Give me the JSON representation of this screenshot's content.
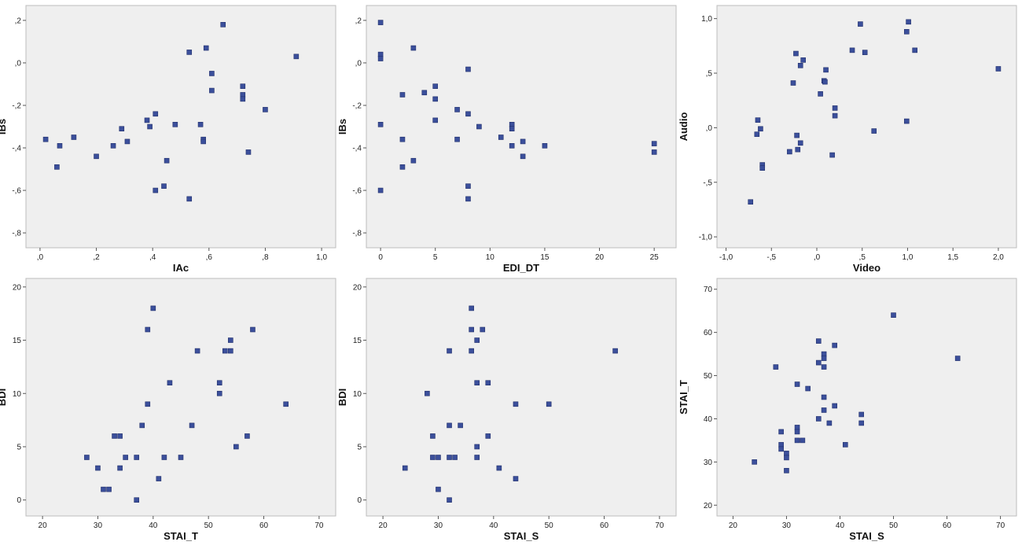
{
  "style": {
    "plot_bg": "#efefef",
    "frame": "#bdbdbd",
    "marker_fill": "#3b4f9b",
    "marker_stroke": "#22306b"
  },
  "chart_data": [
    {
      "type": "scatter",
      "xlabel": "IAc",
      "ylabel": "IBs",
      "xlim": [
        -0.05,
        1.05
      ],
      "ylim": [
        -0.87,
        0.27
      ],
      "xticks": [
        0,
        0.2,
        0.4,
        0.6,
        0.8,
        1.0
      ],
      "xtick_labels": [
        ",0",
        ",2",
        ",4",
        ",6",
        ",8",
        "1,0"
      ],
      "yticks": [
        0.2,
        0,
        -0.2,
        -0.4,
        -0.6,
        -0.8
      ],
      "ytick_labels": [
        ",2",
        ",0",
        "-,2",
        "-,4",
        "-,6",
        "-,8"
      ],
      "points": [
        [
          0.02,
          -0.36
        ],
        [
          0.06,
          -0.49
        ],
        [
          0.07,
          -0.39
        ],
        [
          0.12,
          -0.35
        ],
        [
          0.2,
          -0.44
        ],
        [
          0.26,
          -0.39
        ],
        [
          0.29,
          -0.31
        ],
        [
          0.31,
          -0.37
        ],
        [
          0.38,
          -0.27
        ],
        [
          0.39,
          -0.3
        ],
        [
          0.41,
          -0.24
        ],
        [
          0.41,
          -0.6
        ],
        [
          0.44,
          -0.58
        ],
        [
          0.45,
          -0.46
        ],
        [
          0.48,
          -0.29
        ],
        [
          0.53,
          0.05
        ],
        [
          0.53,
          -0.64
        ],
        [
          0.57,
          -0.29
        ],
        [
          0.58,
          -0.36
        ],
        [
          0.58,
          -0.37
        ],
        [
          0.59,
          0.07
        ],
        [
          0.61,
          -0.05
        ],
        [
          0.61,
          -0.13
        ],
        [
          0.65,
          0.18
        ],
        [
          0.72,
          -0.11
        ],
        [
          0.72,
          -0.15
        ],
        [
          0.72,
          -0.17
        ],
        [
          0.74,
          -0.42
        ],
        [
          0.8,
          -0.22
        ],
        [
          0.91,
          0.03
        ]
      ]
    },
    {
      "type": "scatter",
      "xlabel": "EDI_DT",
      "ylabel": "IBs",
      "xlim": [
        -1.3,
        27
      ],
      "ylim": [
        -0.87,
        0.27
      ],
      "xticks": [
        0,
        5,
        10,
        15,
        20,
        25
      ],
      "xtick_labels": [
        "0",
        "5",
        "10",
        "15",
        "20",
        "25"
      ],
      "yticks": [
        0.2,
        0,
        -0.2,
        -0.4,
        -0.6,
        -0.8
      ],
      "ytick_labels": [
        ",2",
        ",0",
        "-,2",
        "-,4",
        "-,6",
        "-,8"
      ],
      "points": [
        [
          0,
          0.19
        ],
        [
          0,
          0.04
        ],
        [
          0,
          0.02
        ],
        [
          0,
          -0.29
        ],
        [
          0,
          -0.6
        ],
        [
          2,
          -0.15
        ],
        [
          2,
          -0.36
        ],
        [
          2,
          -0.49
        ],
        [
          3,
          0.07
        ],
        [
          3,
          -0.46
        ],
        [
          4,
          -0.14
        ],
        [
          5,
          -0.11
        ],
        [
          5,
          -0.17
        ],
        [
          5,
          -0.27
        ],
        [
          7,
          -0.22
        ],
        [
          7,
          -0.36
        ],
        [
          8,
          -0.03
        ],
        [
          8,
          -0.24
        ],
        [
          8,
          -0.58
        ],
        [
          8,
          -0.64
        ],
        [
          9,
          -0.3
        ],
        [
          11,
          -0.35
        ],
        [
          12,
          -0.29
        ],
        [
          12,
          -0.31
        ],
        [
          12,
          -0.39
        ],
        [
          13,
          -0.37
        ],
        [
          13,
          -0.44
        ],
        [
          15,
          -0.39
        ],
        [
          25,
          -0.38
        ],
        [
          25,
          -0.42
        ]
      ]
    },
    {
      "type": "scatter",
      "xlabel": "Video",
      "ylabel": "Audio",
      "xlim": [
        -1.1,
        2.2
      ],
      "ylim": [
        -1.1,
        1.12
      ],
      "xticks": [
        -1.0,
        -0.5,
        0,
        0.5,
        1.0,
        1.5,
        2.0
      ],
      "xtick_labels": [
        "-1,0",
        "-,5",
        ",0",
        ",5",
        "1,0",
        "1,5",
        "2,0"
      ],
      "yticks": [
        1.0,
        0.5,
        0,
        -0.5,
        -1.0
      ],
      "ytick_labels": [
        "1,0",
        ",5",
        ",0",
        "-,5",
        "-1,0"
      ],
      "points": [
        [
          -0.73,
          -0.68
        ],
        [
          -0.66,
          -0.06
        ],
        [
          -0.65,
          0.07
        ],
        [
          -0.62,
          -0.01
        ],
        [
          -0.6,
          -0.34
        ],
        [
          -0.6,
          -0.37
        ],
        [
          -0.3,
          -0.22
        ],
        [
          -0.26,
          0.41
        ],
        [
          -0.23,
          0.68
        ],
        [
          -0.22,
          -0.07
        ],
        [
          -0.21,
          -0.2
        ],
        [
          -0.18,
          0.57
        ],
        [
          -0.18,
          -0.14
        ],
        [
          -0.15,
          0.62
        ],
        [
          0.04,
          0.31
        ],
        [
          0.08,
          0.43
        ],
        [
          0.09,
          0.42
        ],
        [
          0.1,
          0.53
        ],
        [
          0.17,
          -0.25
        ],
        [
          0.2,
          0.18
        ],
        [
          0.2,
          0.11
        ],
        [
          0.39,
          0.71
        ],
        [
          0.48,
          0.95
        ],
        [
          0.53,
          0.69
        ],
        [
          0.63,
          -0.03
        ],
        [
          0.99,
          0.06
        ],
        [
          0.99,
          0.88
        ],
        [
          1.01,
          0.97
        ],
        [
          1.08,
          0.71
        ],
        [
          2.0,
          0.54
        ]
      ]
    },
    {
      "type": "scatter",
      "xlabel": "STAI_T",
      "ylabel": "BDI",
      "xlim": [
        17,
        73
      ],
      "ylim": [
        -1.5,
        20.8
      ],
      "xticks": [
        20,
        30,
        40,
        50,
        60,
        70
      ],
      "xtick_labels": [
        "20",
        "30",
        "40",
        "50",
        "60",
        "70"
      ],
      "yticks": [
        20,
        15,
        10,
        5,
        0
      ],
      "ytick_labels": [
        "20",
        "15",
        "10",
        "5",
        "0"
      ],
      "points": [
        [
          28,
          4
        ],
        [
          30,
          3
        ],
        [
          31,
          1
        ],
        [
          32,
          1
        ],
        [
          33,
          6
        ],
        [
          34,
          6
        ],
        [
          34,
          3
        ],
        [
          35,
          4
        ],
        [
          37,
          4
        ],
        [
          37,
          0
        ],
        [
          38,
          7
        ],
        [
          39,
          16
        ],
        [
          39,
          9
        ],
        [
          40,
          18
        ],
        [
          41,
          2
        ],
        [
          42,
          4
        ],
        [
          43,
          11
        ],
        [
          45,
          4
        ],
        [
          47,
          7
        ],
        [
          48,
          14
        ],
        [
          52,
          11
        ],
        [
          52,
          10
        ],
        [
          53,
          14
        ],
        [
          54,
          15
        ],
        [
          54,
          14
        ],
        [
          55,
          5
        ],
        [
          57,
          6
        ],
        [
          58,
          16
        ],
        [
          64,
          9
        ]
      ]
    },
    {
      "type": "scatter",
      "xlabel": "STAI_S",
      "ylabel": "BDI",
      "xlim": [
        17,
        73
      ],
      "ylim": [
        -1.5,
        20.8
      ],
      "xticks": [
        20,
        30,
        40,
        50,
        60,
        70
      ],
      "xtick_labels": [
        "20",
        "30",
        "40",
        "50",
        "60",
        "70"
      ],
      "yticks": [
        20,
        15,
        10,
        5,
        0
      ],
      "ytick_labels": [
        "20",
        "15",
        "10",
        "5",
        "0"
      ],
      "points": [
        [
          24,
          3
        ],
        [
          28,
          10
        ],
        [
          29,
          6
        ],
        [
          29,
          4
        ],
        [
          30,
          4
        ],
        [
          30,
          1
        ],
        [
          32,
          14
        ],
        [
          32,
          7
        ],
        [
          32,
          4
        ],
        [
          32,
          0
        ],
        [
          33,
          4
        ],
        [
          34,
          7
        ],
        [
          36,
          18
        ],
        [
          36,
          16
        ],
        [
          36,
          14
        ],
        [
          37,
          15
        ],
        [
          37,
          11
        ],
        [
          37,
          5
        ],
        [
          37,
          4
        ],
        [
          38,
          16
        ],
        [
          39,
          11
        ],
        [
          39,
          6
        ],
        [
          41,
          3
        ],
        [
          44,
          9
        ],
        [
          44,
          2
        ],
        [
          50,
          9
        ],
        [
          62,
          14
        ]
      ]
    },
    {
      "type": "scatter",
      "xlabel": "STAI_S",
      "ylabel": "STAI_T",
      "xlim": [
        17,
        73
      ],
      "ylim": [
        17.5,
        72.5
      ],
      "xticks": [
        20,
        30,
        40,
        50,
        60,
        70
      ],
      "xtick_labels": [
        "20",
        "30",
        "40",
        "50",
        "60",
        "70"
      ],
      "yticks": [
        70,
        60,
        50,
        40,
        30,
        20
      ],
      "ytick_labels": [
        "70",
        "60",
        "50",
        "40",
        "30",
        "20"
      ],
      "points": [
        [
          24,
          30
        ],
        [
          28,
          52
        ],
        [
          29,
          37
        ],
        [
          29,
          34
        ],
        [
          29,
          33
        ],
        [
          30,
          32
        ],
        [
          30,
          31
        ],
        [
          30,
          28
        ],
        [
          32,
          48
        ],
        [
          32,
          38
        ],
        [
          32,
          37
        ],
        [
          32,
          35
        ],
        [
          33,
          35
        ],
        [
          34,
          47
        ],
        [
          36,
          58
        ],
        [
          36,
          53
        ],
        [
          36,
          40
        ],
        [
          37,
          55
        ],
        [
          37,
          54
        ],
        [
          37,
          52
        ],
        [
          37,
          45
        ],
        [
          37,
          42
        ],
        [
          38,
          39
        ],
        [
          39,
          57
        ],
        [
          39,
          43
        ],
        [
          41,
          34
        ],
        [
          44,
          41
        ],
        [
          44,
          39
        ],
        [
          50,
          64
        ],
        [
          62,
          54
        ]
      ]
    }
  ]
}
